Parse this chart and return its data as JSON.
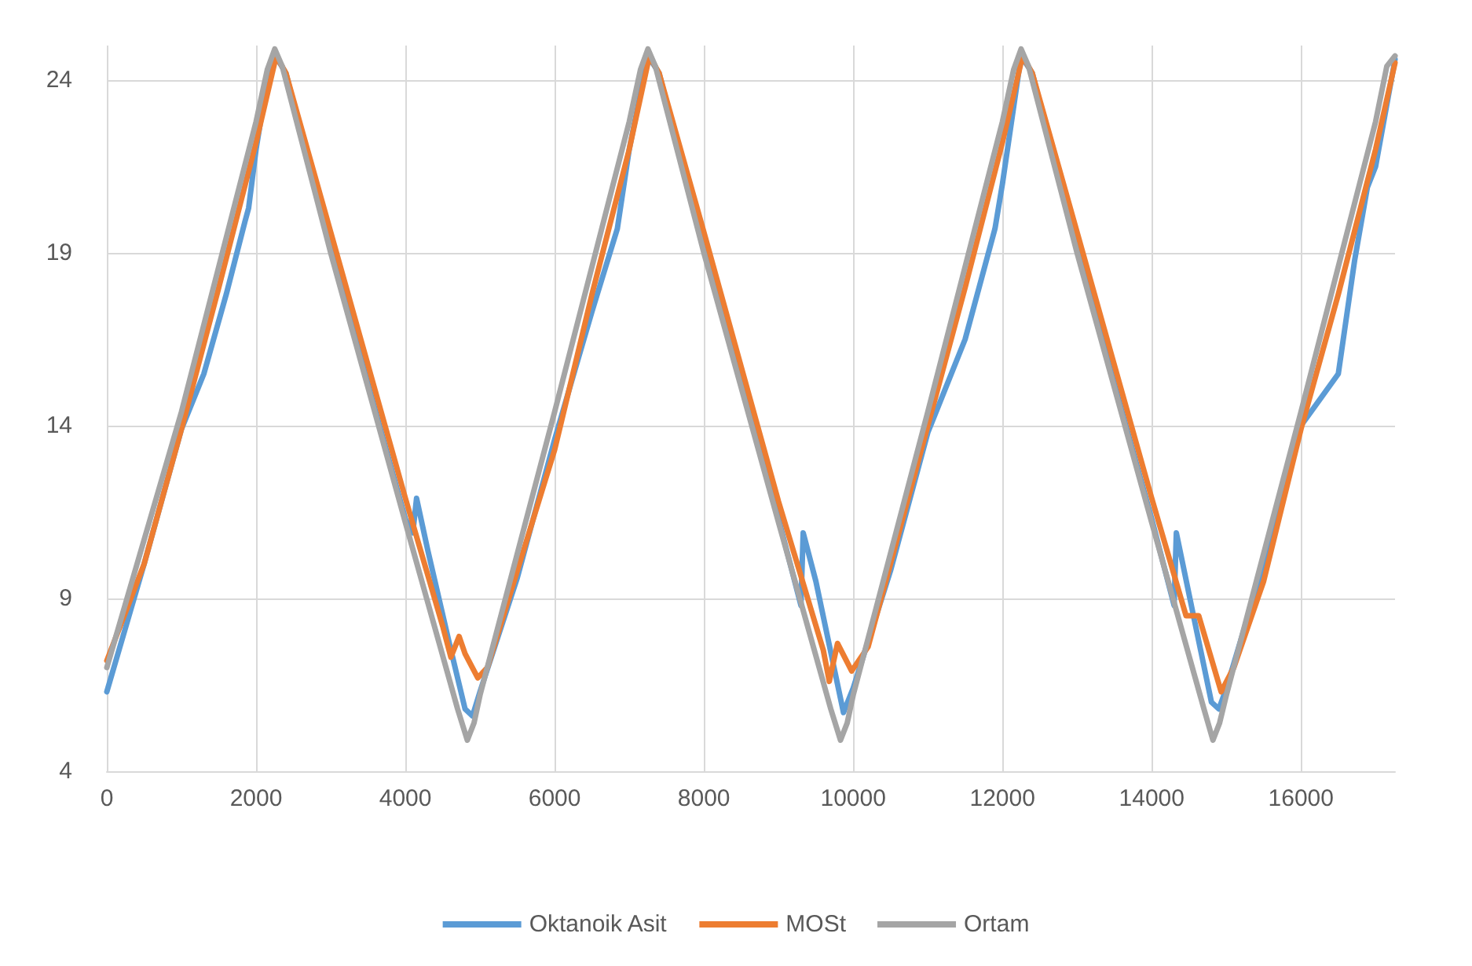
{
  "chart_data": {
    "type": "line",
    "xlim": [
      0,
      17260
    ],
    "xticks": [
      0,
      2000,
      4000,
      6000,
      8000,
      10000,
      12000,
      14000,
      16000
    ],
    "ylim": [
      4,
      25
    ],
    "yticks": [
      4,
      9,
      14,
      19,
      24
    ],
    "grid": true,
    "legend": "bottom",
    "marker": "none",
    "line_style": "solid",
    "series": [
      {
        "name": "Oktanoik Asit",
        "color": "#5b9bd5",
        "x": [
          0,
          500,
          1000,
          1300,
          1600,
          1850,
          1900,
          2000,
          2150,
          2260,
          2400,
          3000,
          4000,
          4100,
          4150,
          4300,
          4600,
          4800,
          4900,
          5000,
          5500,
          6000,
          6500,
          6840,
          7000,
          7250,
          7400,
          8000,
          9000,
          9300,
          9330,
          9500,
          9870,
          10000,
          10500,
          11000,
          11500,
          11900,
          12000,
          12250,
          12400,
          13000,
          14000,
          14300,
          14330,
          14550,
          14800,
          14900,
          15000,
          15500,
          16000,
          16500,
          16720,
          16890,
          17000,
          17260
        ],
        "values": [
          6.3,
          10.0,
          13.9,
          15.5,
          17.8,
          19.9,
          20.3,
          22.0,
          24.0,
          24.7,
          24.2,
          19.1,
          11.3,
          10.9,
          11.9,
          10.4,
          7.6,
          5.8,
          5.6,
          6.3,
          9.6,
          13.6,
          17.3,
          19.7,
          22.0,
          24.7,
          24.2,
          19.1,
          11.3,
          8.8,
          10.9,
          9.5,
          5.7,
          6.4,
          9.8,
          13.8,
          16.5,
          19.7,
          21.0,
          24.7,
          24.2,
          19.1,
          11.3,
          8.8,
          10.9,
          8.6,
          6.0,
          5.8,
          6.4,
          10.0,
          14.0,
          15.5,
          18.8,
          20.9,
          21.5,
          24.6
        ]
      },
      {
        "name": "MOSt",
        "color": "#ed7d31",
        "x": [
          0,
          500,
          1000,
          1500,
          2000,
          2270,
          2400,
          3000,
          4000,
          4500,
          4610,
          4720,
          4800,
          4970,
          5100,
          5500,
          6000,
          6500,
          7000,
          7270,
          7400,
          8000,
          9000,
          9600,
          9680,
          9790,
          9980,
          10200,
          11000,
          11500,
          12000,
          12270,
          12400,
          13000,
          14000,
          14460,
          14630,
          14930,
          15100,
          15500,
          16000,
          16500,
          17000,
          17260
        ],
        "values": [
          7.2,
          10.0,
          13.9,
          18.0,
          22.2,
          24.7,
          24.2,
          19.6,
          11.9,
          8.2,
          7.3,
          7.9,
          7.4,
          6.7,
          7.0,
          9.8,
          13.3,
          17.8,
          22.0,
          24.7,
          24.2,
          19.6,
          11.8,
          7.5,
          6.6,
          7.7,
          6.9,
          7.6,
          14.0,
          18.0,
          22.2,
          24.7,
          24.2,
          19.6,
          11.9,
          8.5,
          8.5,
          6.3,
          7.0,
          9.5,
          13.9,
          17.8,
          22.0,
          24.5
        ]
      },
      {
        "name": "Ortam",
        "color": "#a5a5a5",
        "x": [
          0,
          1000,
          2000,
          2150,
          2250,
          2350,
          3000,
          4000,
          4700,
          4830,
          4920,
          5000,
          6000,
          7000,
          7150,
          7250,
          7350,
          8000,
          9000,
          9700,
          9830,
          9920,
          10000,
          11000,
          12000,
          12150,
          12250,
          12350,
          13000,
          14000,
          14700,
          14820,
          14910,
          15000,
          16000,
          17000,
          17150,
          17260
        ],
        "values": [
          7.0,
          14.4,
          22.8,
          24.3,
          24.9,
          24.4,
          19.0,
          11.2,
          5.8,
          4.9,
          5.4,
          6.2,
          14.4,
          22.8,
          24.3,
          24.9,
          24.4,
          19.0,
          11.2,
          5.8,
          4.9,
          5.4,
          6.2,
          14.4,
          22.8,
          24.3,
          24.9,
          24.4,
          19.0,
          11.2,
          5.8,
          4.9,
          5.4,
          6.2,
          14.4,
          22.8,
          24.4,
          24.7
        ]
      }
    ]
  }
}
